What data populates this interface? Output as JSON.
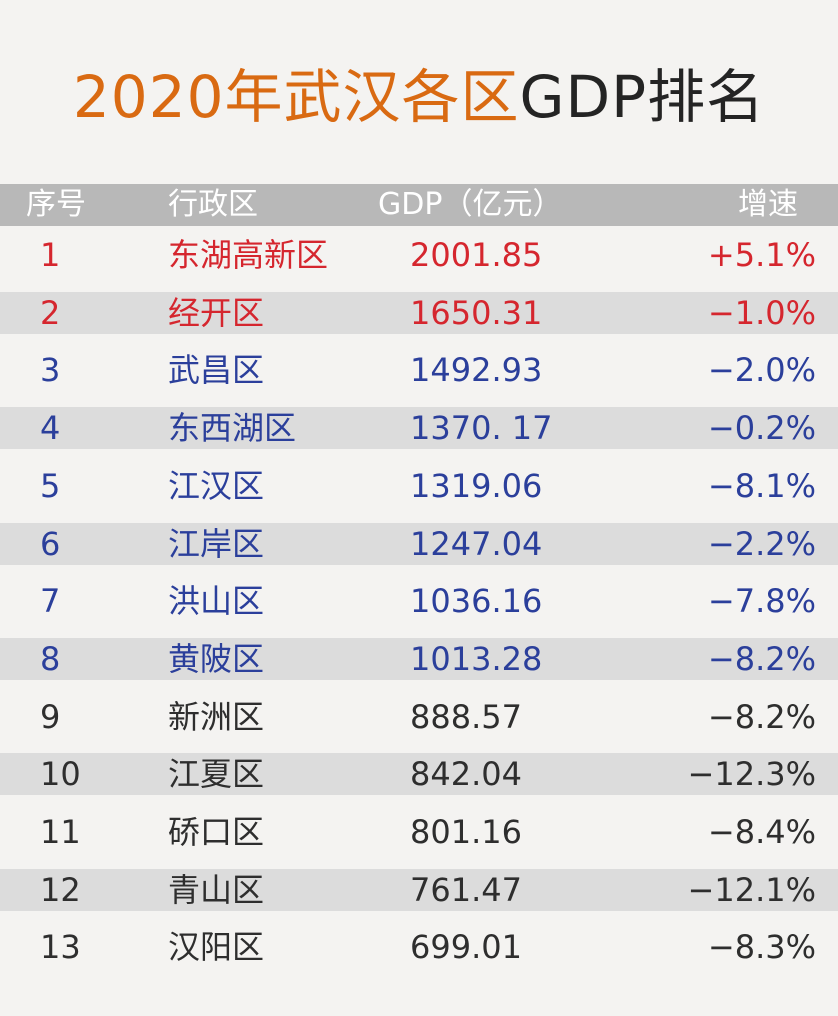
{
  "title": {
    "part1": "2020年武汉各区",
    "part2": "GDP排名"
  },
  "chart_data": {
    "type": "table",
    "columns": [
      "序号",
      "行政区",
      "GDP（亿元）",
      "增速"
    ],
    "rows": [
      {
        "rank": "1",
        "district": "东湖高新区",
        "gdp": "2001.85",
        "growth": "+5.1%"
      },
      {
        "rank": "2",
        "district": "经开区",
        "gdp": "1650.31",
        "growth": "−1.0%"
      },
      {
        "rank": "3",
        "district": "武昌区",
        "gdp": "1492.93",
        "growth": "−2.0%"
      },
      {
        "rank": "4",
        "district": "东西湖区",
        "gdp": "1370. 17",
        "growth": "−0.2%"
      },
      {
        "rank": "5",
        "district": "江汉区",
        "gdp": "1319.06",
        "growth": "−8.1%"
      },
      {
        "rank": "6",
        "district": "江岸区",
        "gdp": "1247.04",
        "growth": "−2.2%"
      },
      {
        "rank": "7",
        "district": "洪山区",
        "gdp": "1036.16",
        "growth": "−7.8%"
      },
      {
        "rank": "8",
        "district": "黄陂区",
        "gdp": "1013.28",
        "growth": "−8.2%"
      },
      {
        "rank": "9",
        "district": "新洲区",
        "gdp": "888.57",
        "growth": "−8.2%"
      },
      {
        "rank": "10",
        "district": "江夏区",
        "gdp": "842.04",
        "growth": "−12.3%"
      },
      {
        "rank": "11",
        "district": "硚口区",
        "gdp": "801.16",
        "growth": "−8.4%"
      },
      {
        "rank": "12",
        "district": "青山区",
        "gdp": "761.47",
        "growth": "−12.1%"
      },
      {
        "rank": "13",
        "district": "汉阳区",
        "gdp": "699.01",
        "growth": "−8.3%"
      }
    ]
  },
  "colors": {
    "title_orange": "#d96a12",
    "title_dark": "#242424",
    "header_bg": "#b8b8b8",
    "stripe_bg": "#dcdcdc",
    "red_text": "#d5262e",
    "blue_text": "#2b3f9b",
    "dark_text": "#2e2e2e"
  }
}
